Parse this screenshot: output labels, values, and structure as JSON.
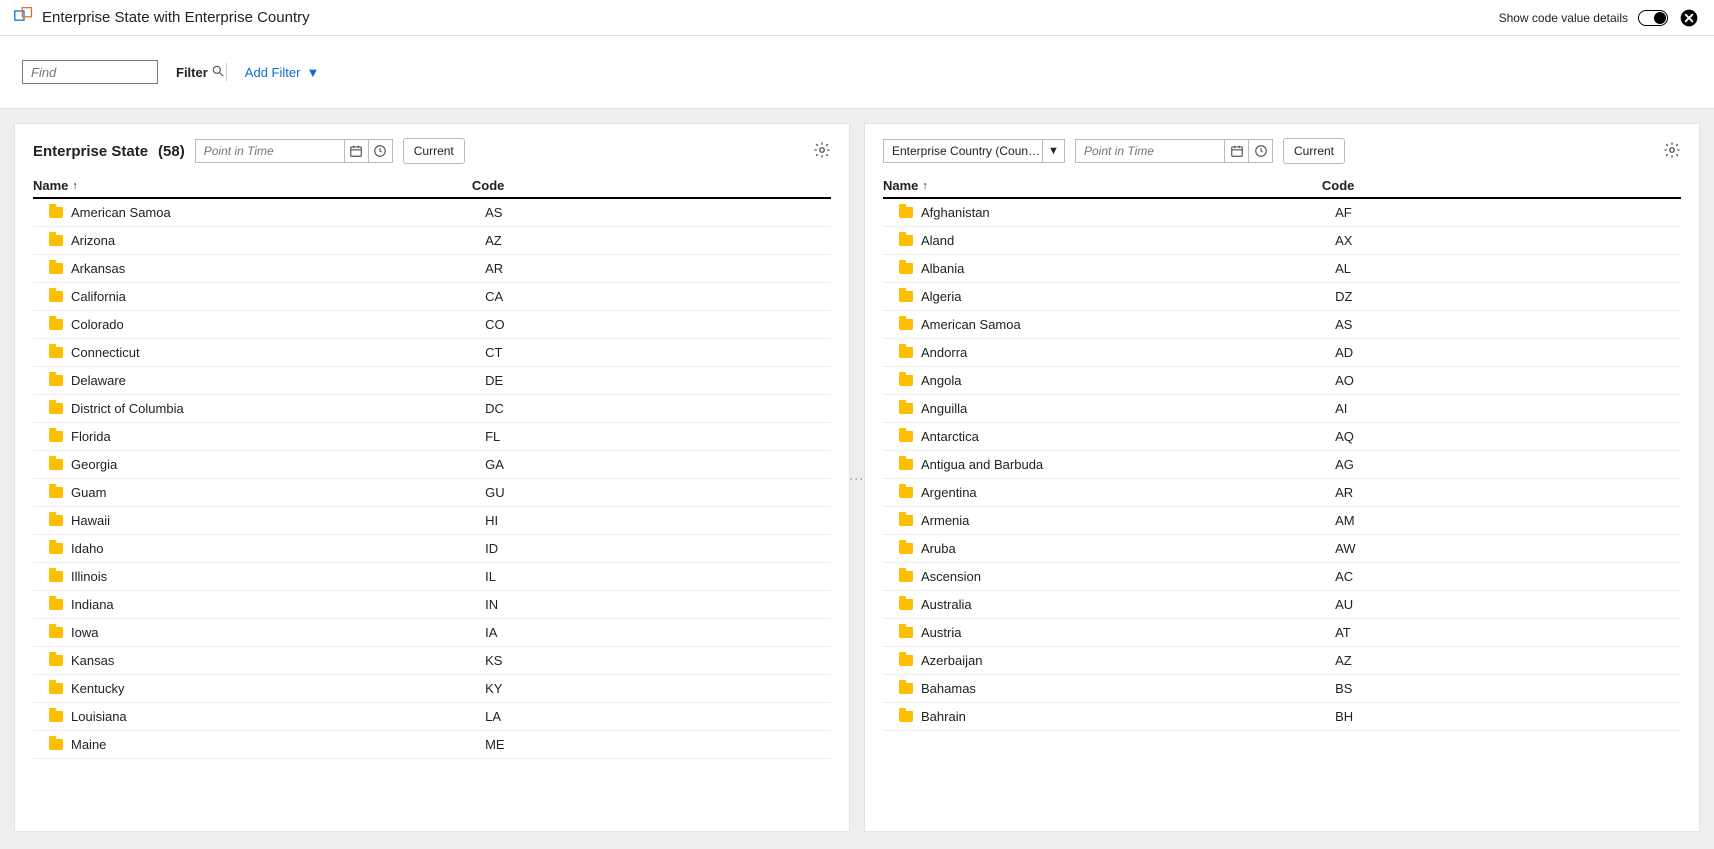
{
  "header": {
    "title": "Enterprise State with Enterprise Country",
    "toggle_label": "Show code value details",
    "toggle_on": true
  },
  "filter": {
    "find_placeholder": "Find",
    "label": "Filter",
    "add_filter": "Add Filter"
  },
  "panel_left": {
    "title": "Enterprise State",
    "count": "(58)",
    "pit_placeholder": "Point in Time",
    "current_label": "Current",
    "columns": {
      "name": "Name",
      "code": "Code"
    },
    "rows": [
      {
        "name": "American Samoa",
        "code": "AS"
      },
      {
        "name": "Arizona",
        "code": "AZ"
      },
      {
        "name": "Arkansas",
        "code": "AR"
      },
      {
        "name": "California",
        "code": "CA"
      },
      {
        "name": "Colorado",
        "code": "CO"
      },
      {
        "name": "Connecticut",
        "code": "CT"
      },
      {
        "name": "Delaware",
        "code": "DE"
      },
      {
        "name": "District of Columbia",
        "code": "DC"
      },
      {
        "name": "Florida",
        "code": "FL"
      },
      {
        "name": "Georgia",
        "code": "GA"
      },
      {
        "name": "Guam",
        "code": "GU"
      },
      {
        "name": "Hawaii",
        "code": "HI"
      },
      {
        "name": "Idaho",
        "code": "ID"
      },
      {
        "name": "Illinois",
        "code": "IL"
      },
      {
        "name": "Indiana",
        "code": "IN"
      },
      {
        "name": "Iowa",
        "code": "IA"
      },
      {
        "name": "Kansas",
        "code": "KS"
      },
      {
        "name": "Kentucky",
        "code": "KY"
      },
      {
        "name": "Louisiana",
        "code": "LA"
      },
      {
        "name": "Maine",
        "code": "ME"
      }
    ]
  },
  "panel_right": {
    "dropdown_label": "Enterprise Country (Coun…",
    "pit_placeholder": "Point in Time",
    "current_label": "Current",
    "columns": {
      "name": "Name",
      "code": "Code"
    },
    "rows": [
      {
        "name": "Afghanistan",
        "code": "AF"
      },
      {
        "name": "Aland",
        "code": "AX"
      },
      {
        "name": "Albania",
        "code": "AL"
      },
      {
        "name": "Algeria",
        "code": "DZ"
      },
      {
        "name": "American Samoa",
        "code": "AS"
      },
      {
        "name": "Andorra",
        "code": "AD"
      },
      {
        "name": "Angola",
        "code": "AO"
      },
      {
        "name": "Anguilla",
        "code": "AI"
      },
      {
        "name": "Antarctica",
        "code": "AQ"
      },
      {
        "name": "Antigua and Barbuda",
        "code": "AG"
      },
      {
        "name": "Argentina",
        "code": "AR"
      },
      {
        "name": "Armenia",
        "code": "AM"
      },
      {
        "name": "Aruba",
        "code": "AW"
      },
      {
        "name": "Ascension",
        "code": "AC"
      },
      {
        "name": "Australia",
        "code": "AU"
      },
      {
        "name": "Austria",
        "code": "AT"
      },
      {
        "name": "Azerbaijan",
        "code": "AZ"
      },
      {
        "name": "Bahamas",
        "code": "BS"
      },
      {
        "name": "Bahrain",
        "code": "BH"
      }
    ]
  },
  "colors": {
    "link": "#0b6ed0",
    "folder": "#fdbf00",
    "background": "#eeeeee",
    "panel_bg": "#ffffff",
    "border": "#e0e0e0"
  }
}
